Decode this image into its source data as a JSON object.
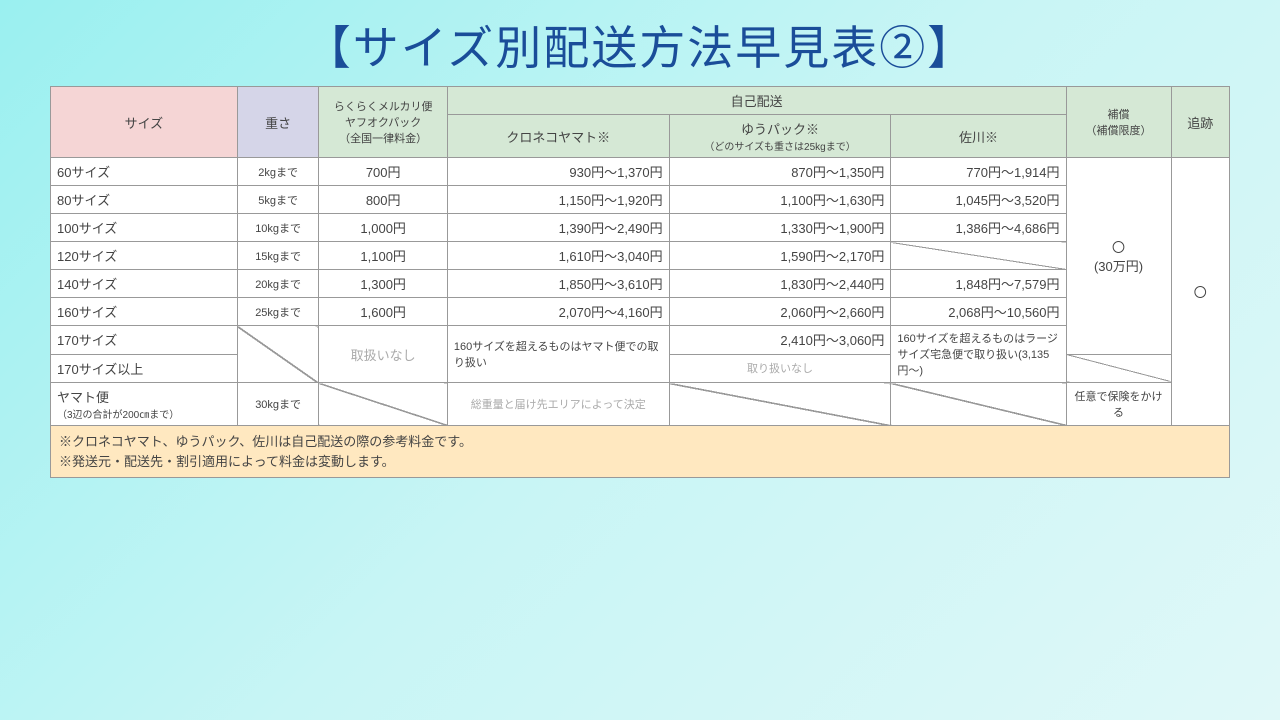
{
  "title": "【サイズ別配送方法早見表②】",
  "headers": {
    "size": "サイズ",
    "weight": "重さ",
    "rakuraku": "らくらくメルカリ便\nヤフオクパック\n（全国一律料金）",
    "self": "自己配送",
    "kuroneko": "クロネコヤマト※",
    "yupack": "ゆうパック※",
    "yupack_note": "（どのサイズも重さは25kgまで）",
    "sagawa": "佐川※",
    "comp": "補償\n（補償限度）",
    "track": "追跡"
  },
  "rows": [
    {
      "size": "60サイズ",
      "weight": "2kgまで",
      "raku": "700円",
      "kuro": "930円～1,370円",
      "yu": "870円～1,350円",
      "saga": "770円～1,914円"
    },
    {
      "size": "80サイズ",
      "weight": "5kgまで",
      "raku": "800円",
      "kuro": "1,150円～1,920円",
      "yu": "1,100円～1,630円",
      "saga": "1,045円～3,520円"
    },
    {
      "size": "100サイズ",
      "weight": "10kgまで",
      "raku": "1,000円",
      "kuro": "1,390円～2,490円",
      "yu": "1,330円～1,900円",
      "saga": "1,386円～4,686円"
    },
    {
      "size": "120サイズ",
      "weight": "15kgまで",
      "raku": "1,100円",
      "kuro": "1,610円～3,040円",
      "yu": "1,590円～2,170円",
      "saga": ""
    },
    {
      "size": "140サイズ",
      "weight": "20kgまで",
      "raku": "1,300円",
      "kuro": "1,850円～3,610円",
      "yu": "1,830円～2,440円",
      "saga": "1,848円～7,579円"
    },
    {
      "size": "160サイズ",
      "weight": "25kgまで",
      "raku": "1,600円",
      "kuro": "2,070円～4,160円",
      "yu": "2,060円～2,660円",
      "saga": "2,068円～10,560円"
    }
  ],
  "r170": {
    "size": "170サイズ",
    "yu": "2,410円～3,060円"
  },
  "r170p": {
    "size": "170サイズ以上",
    "yu_note": "取り扱いなし"
  },
  "raku_none": "取扱いなし",
  "kuro_note": "160サイズを超えるものはヤマト便での取り扱い",
  "saga_note": "160サイズを超えるものはラージサイズ宅急便で取り扱い(3,135円～)",
  "yamato": {
    "size": "ヤマト便",
    "size_note": "（3辺の合計が200㎝まで）",
    "weight": "30kgまで",
    "kuro": "総重量と届け先エリアによって決定",
    "comp": "任意で保険をかける"
  },
  "comp_val": "〇\n(30万円)",
  "track_val": "〇",
  "notes": [
    "※クロネコヤマト、ゆうパック、佐川は自己配送の際の参考料金です。",
    "※発送元・配送先・割引適用によって料金は変動します。"
  ],
  "colors": {
    "title": "#1a4d99",
    "bg_grad_start": "#9af0f0",
    "bg_grad_end": "#e0f8f8",
    "h_pink": "#f5d5d5",
    "h_blue": "#d5d5e8",
    "h_green": "#d5e8d5",
    "notes_bg": "#ffe8c0",
    "border": "#999999"
  }
}
